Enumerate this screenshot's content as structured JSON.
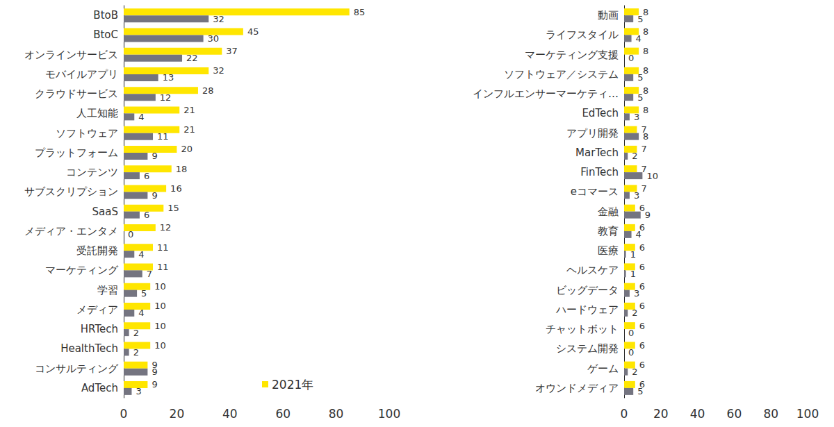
{
  "chart_data": [
    {
      "type": "bar",
      "orientation": "horizontal",
      "data_labels": true,
      "grid": false,
      "legend": "bottom",
      "categories": [
        "BtoB",
        "BtoC",
        "オンラインサービス",
        "モバイルアプリ",
        "クラウドサービス",
        "人工知能",
        "ソフトウェア",
        "プラットフォーム",
        "コンテンツ",
        "サブスクリプション",
        "SaaS",
        "メディア・エンタメ",
        "受託開発",
        "マーケティング",
        "学習",
        "メディア",
        "HRTech",
        "HealthTech",
        "コンサルティング",
        "AdTech"
      ],
      "series": [
        {
          "name": "2021年",
          "color": "#ffe600",
          "values": [
            85,
            45,
            37,
            32,
            28,
            21,
            21,
            20,
            18,
            16,
            15,
            12,
            11,
            11,
            10,
            10,
            10,
            10,
            9,
            9
          ]
        },
        {
          "color": "#747480",
          "values": [
            32,
            30,
            22,
            13,
            12,
            4,
            11,
            9,
            6,
            9,
            6,
            0,
            4,
            7,
            5,
            4,
            2,
            2,
            9,
            3
          ]
        }
      ],
      "xlim": [
        0,
        100
      ],
      "xticks": [
        0,
        20,
        40,
        60,
        80,
        100
      ]
    },
    {
      "type": "bar",
      "orientation": "horizontal",
      "data_labels": true,
      "grid": false,
      "categories": [
        "動画",
        "ライフスタイル",
        "マーケティング支援",
        "ソフトウェア／システム",
        "インフルエンサーマーケティ…",
        "EdTech",
        "アプリ開発",
        "MarTech",
        "FinTech",
        "eコマース",
        "金融",
        "教育",
        "医療",
        "ヘルスケア",
        "ビッグデータ",
        "ハードウェア",
        "チャットボット",
        "システム開発",
        "ゲーム",
        "オウンドメディア"
      ],
      "series": [
        {
          "color": "#ffe600",
          "values": [
            8,
            8,
            8,
            8,
            8,
            8,
            7,
            7,
            7,
            7,
            6,
            6,
            6,
            6,
            6,
            6,
            6,
            6,
            6,
            6
          ]
        },
        {
          "color": "#747480",
          "values": [
            5,
            4,
            0,
            5,
            5,
            3,
            8,
            2,
            10,
            3,
            9,
            4,
            1,
            1,
            3,
            2,
            0,
            0,
            2,
            5
          ]
        }
      ],
      "xlim": [
        0,
        100
      ],
      "xticks": [
        0,
        20,
        40,
        60,
        80,
        100
      ]
    }
  ]
}
